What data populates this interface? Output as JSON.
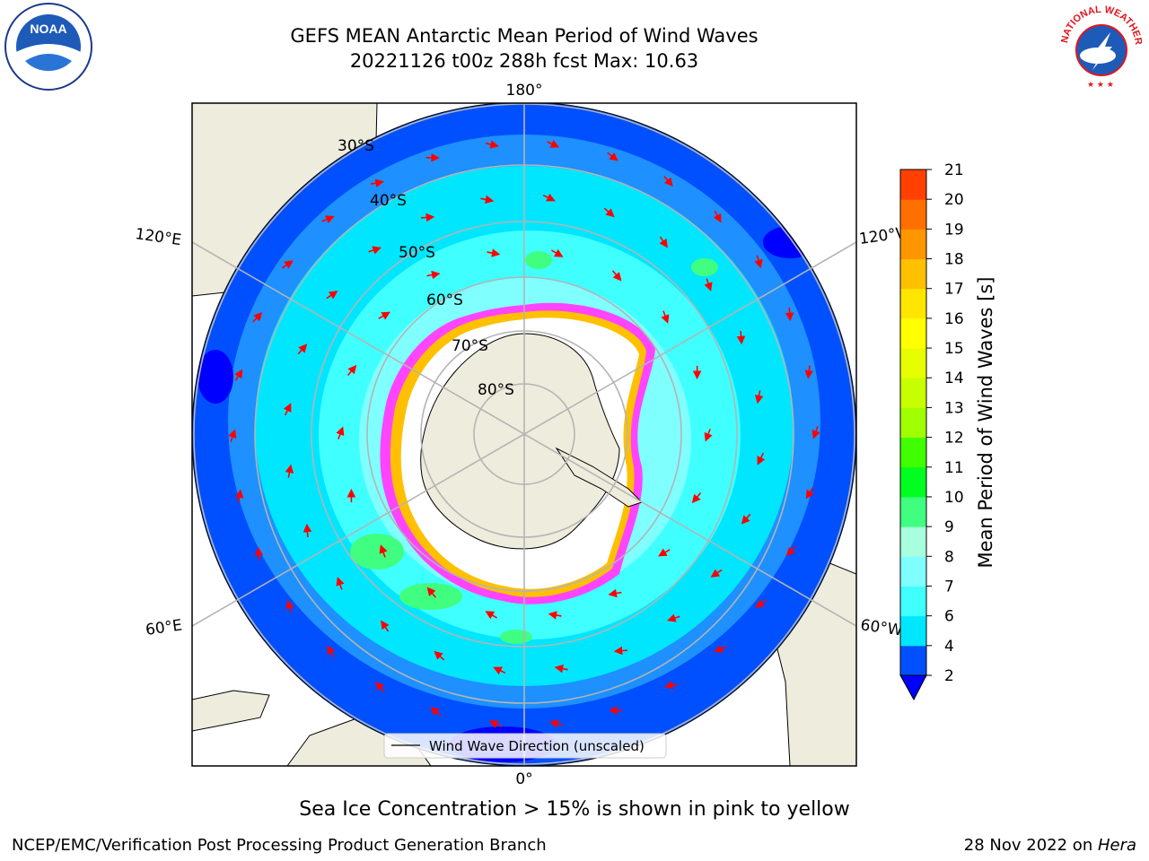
{
  "title": {
    "line1": "GEFS MEAN Antarctic Mean Period of Wind Waves",
    "line2": "20221126 t00z 288h fcst   Max: 10.63"
  },
  "map": {
    "projection": "south-polar-stereographic",
    "longitude_labels": {
      "top": "180°",
      "bottom": "0°",
      "left_upper": "120°E",
      "right_upper": "120°W",
      "left_lower": "60°E",
      "right_lower": "60°W"
    },
    "latitude_labels": [
      "30°S",
      "40°S",
      "50°S",
      "60°S",
      "70°S",
      "80°S"
    ],
    "legend_label": "Wind Wave Direction (unscaled)",
    "colors": {
      "land": "#eeecdc",
      "sea_ice": "#ffffff",
      "arrow": "#ff0000",
      "grid": "#b4b4b4"
    }
  },
  "colorbar": {
    "label": "Mean Period of Wind Waves [s]",
    "ticks": [
      "2",
      "4",
      "6",
      "7",
      "8",
      "9",
      "10",
      "11",
      "12",
      "13",
      "14",
      "15",
      "16",
      "17",
      "18",
      "19",
      "20",
      "21"
    ],
    "colors": [
      "#0050ff",
      "#00e6ff",
      "#40ffff",
      "#80ffff",
      "#a8ffe0",
      "#40ff80",
      "#00ff20",
      "#40ff00",
      "#a0ff00",
      "#c8ff00",
      "#e6ff00",
      "#ffff00",
      "#ffe600",
      "#ffc000",
      "#ff9600",
      "#ff7000",
      "#ff4000"
    ],
    "under_color": "#0000ff",
    "top_color": "#ff0000"
  },
  "subtitle": "Sea Ice Concentration > 15% is shown in pink to yellow",
  "footer": {
    "left": "NCEP/EMC/Verification Post Processing Product Generation Branch",
    "right_prefix": "28 Nov 2022 on ",
    "right_machine": "Hera"
  },
  "logos": {
    "noaa_text": "NOAA",
    "nws_text": "NATIONAL WEATHER SERVICE"
  }
}
